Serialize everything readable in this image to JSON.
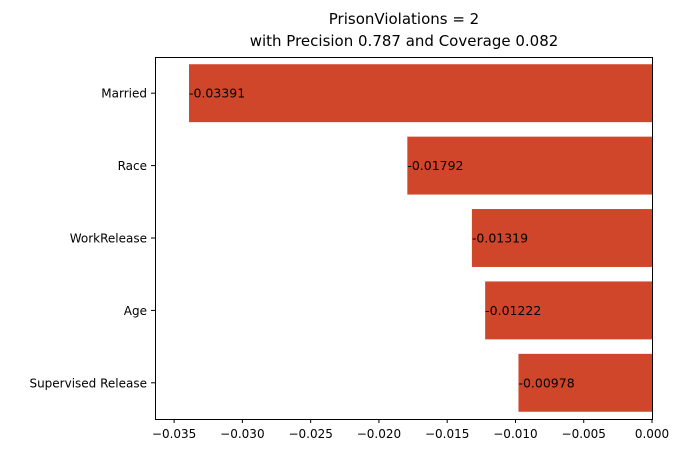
{
  "chart_data": {
    "type": "bar",
    "orientation": "horizontal",
    "title": "PrisonViolations = 2",
    "subtitle": "with Precision 0.787 and Coverage 0.082",
    "xlabel": "",
    "ylabel": "",
    "categories": [
      "Married",
      "Race",
      "WorkRelease",
      "Age",
      "Supervised Release"
    ],
    "values": [
      -0.03391,
      -0.01792,
      -0.01319,
      -0.01222,
      -0.00978
    ],
    "data_labels": [
      "-0.03391",
      "-0.01792",
      "-0.01319",
      "-0.01222",
      "-0.00978"
    ],
    "xlim": [
      -0.0364,
      0
    ],
    "xticks": [
      -0.035,
      -0.03,
      -0.025,
      -0.02,
      -0.015,
      -0.01,
      -0.005,
      0.0
    ],
    "xtick_labels": [
      "−0.035",
      "−0.030",
      "−0.025",
      "−0.020",
      "−0.015",
      "−0.010",
      "−0.005",
      "0.000"
    ],
    "bar_color": "#d0462a",
    "grid": false,
    "legend": "none"
  }
}
